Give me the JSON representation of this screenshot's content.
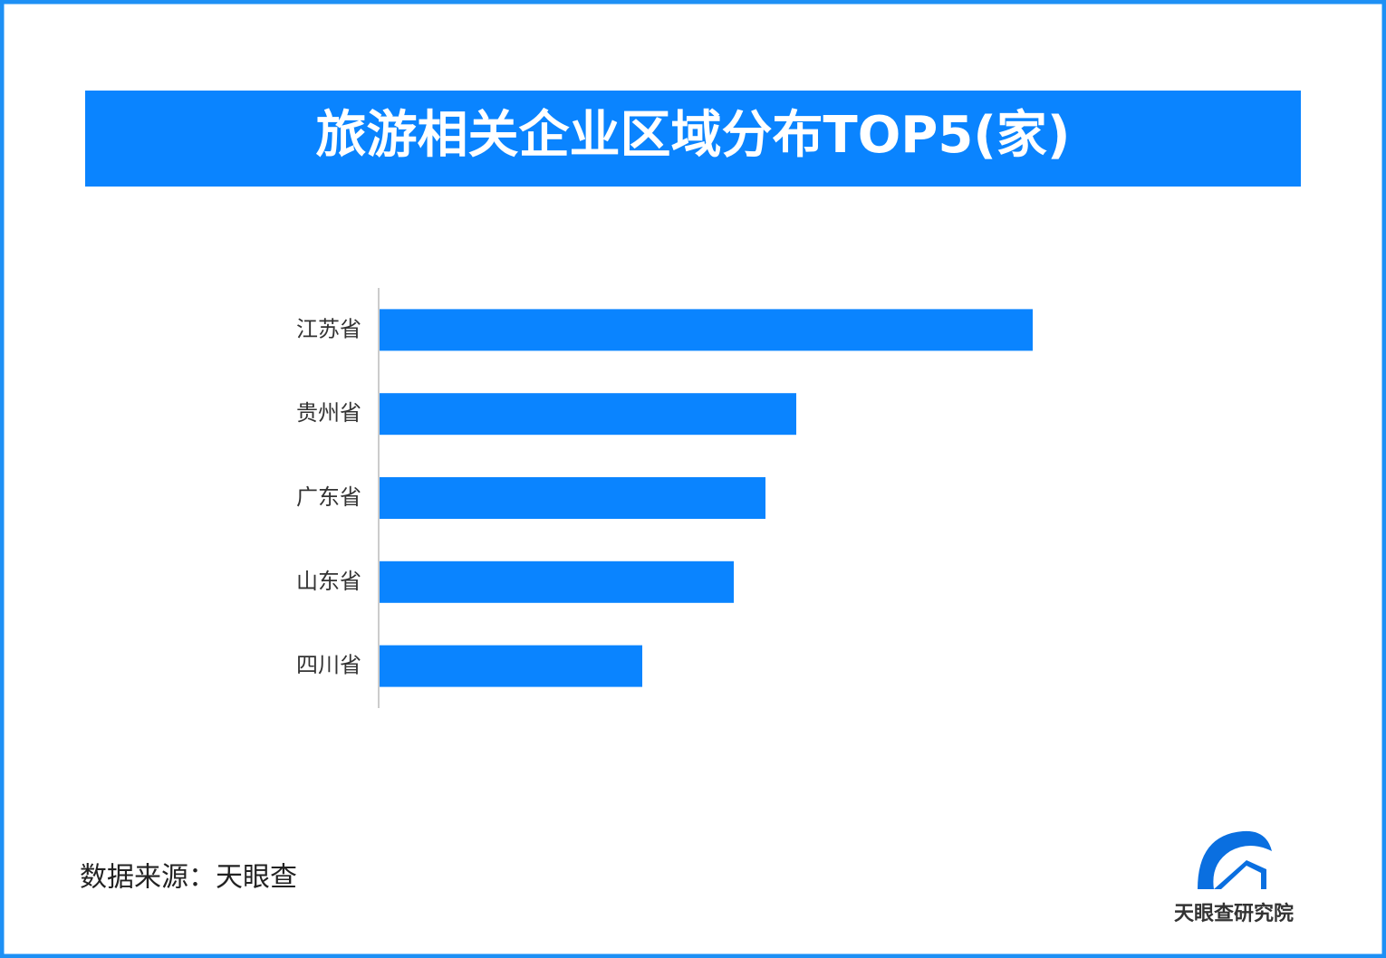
{
  "chart_data": {
    "type": "hbar",
    "title": "旅游相关企业区域分布TOP5(家)",
    "categories": [
      "江苏省",
      "贵州省",
      "广东省",
      "山东省",
      "四川省"
    ],
    "values": [
      721,
      460,
      426,
      391,
      290
    ],
    "color": "#0a84ff",
    "source": "数据来源：天眼查",
    "brand": "天眼查研究院"
  }
}
